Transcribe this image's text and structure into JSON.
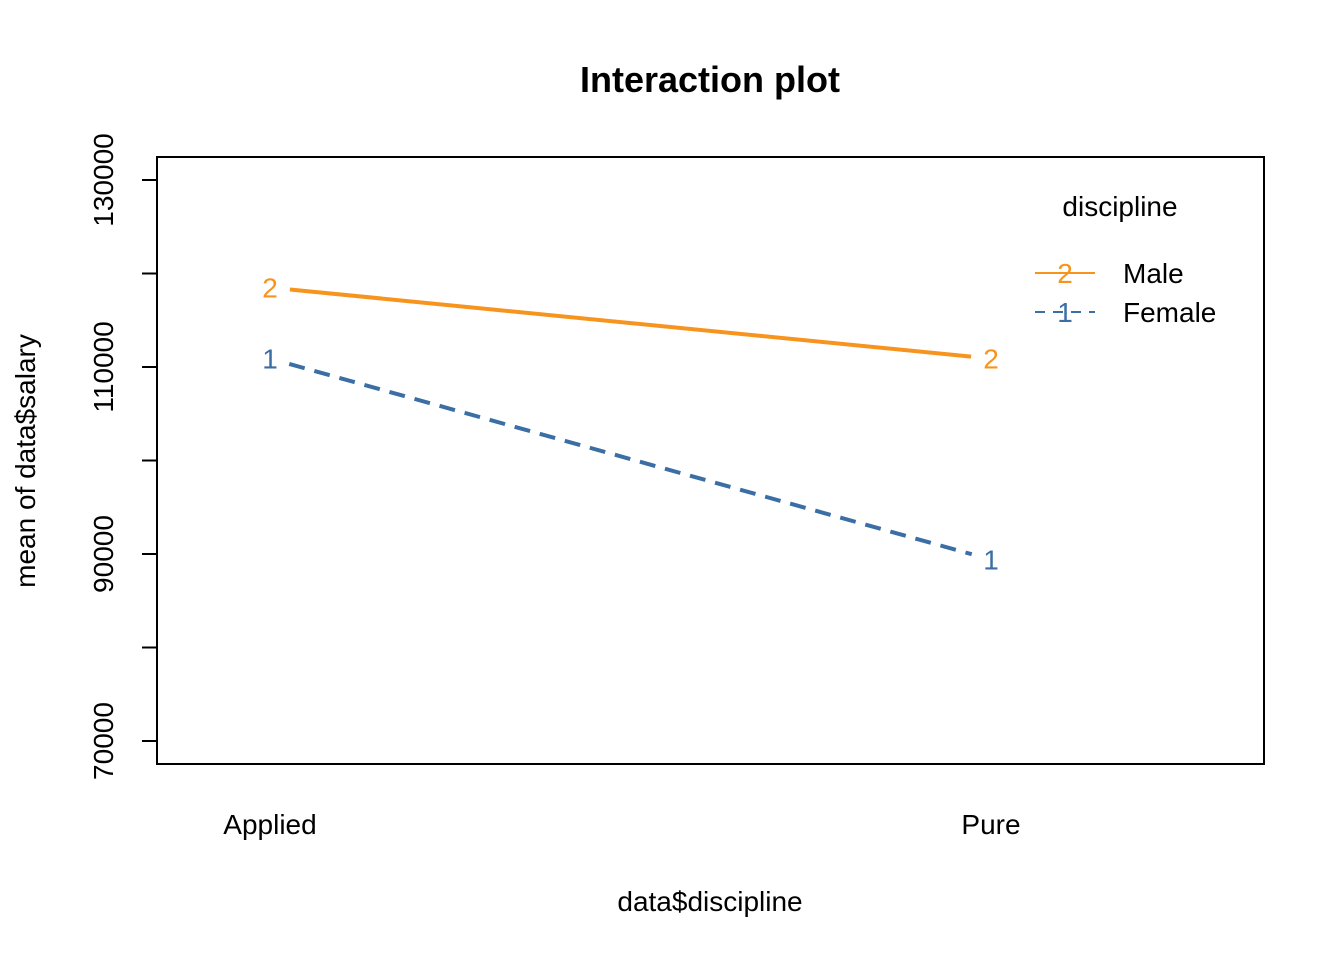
{
  "chart_data": {
    "type": "line",
    "title": "Interaction plot",
    "xlabel": "data$discipline",
    "ylabel": "mean of  data$salary",
    "categories": [
      "Applied",
      "Pure"
    ],
    "y_ticks": [
      70000,
      90000,
      110000,
      130000
    ],
    "y_minor_ticks": [
      80000,
      100000,
      120000
    ],
    "ylim": [
      68000,
      133000
    ],
    "grid": false,
    "legend": {
      "title": "discipline",
      "placement": "top-right",
      "entries": [
        {
          "symbol": "2",
          "label": "Male",
          "color": "#F7941D",
          "dash": "solid"
        },
        {
          "symbol": "1",
          "label": "Female",
          "color": "#3A6EA5",
          "dash": "dashed"
        }
      ]
    },
    "series": [
      {
        "name": "Male",
        "symbol": "2",
        "color": "#F7941D",
        "dash": "solid",
        "values": [
          118500,
          110900
        ]
      },
      {
        "name": "Female",
        "symbol": "1",
        "color": "#3A6EA5",
        "dash": "dashed",
        "values": [
          110900,
          89400
        ]
      }
    ]
  }
}
